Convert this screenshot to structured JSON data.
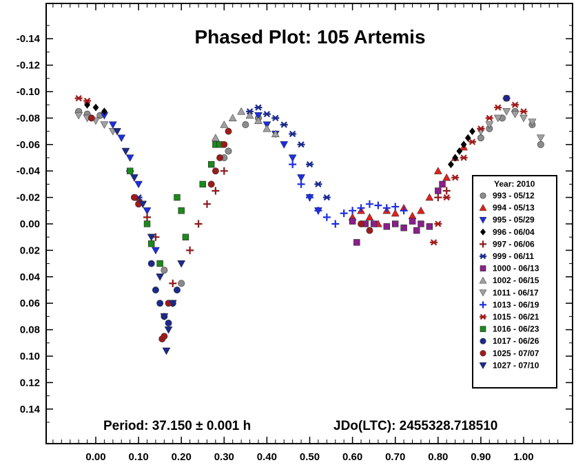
{
  "chart_data": {
    "type": "scatter",
    "title": "Phased Plot: 105 Artemis",
    "xlabel": "",
    "ylabel": "",
    "xlim": [
      -0.12,
      1.1
    ],
    "ylim": [
      0.16,
      -0.16
    ],
    "y_inverted": true,
    "x_ticks": [
      "0.00",
      "0.10",
      "0.20",
      "0.30",
      "0.40",
      "0.50",
      "0.60",
      "0.70",
      "0.80",
      "0.90",
      "1.00"
    ],
    "x_tick_values": [
      0,
      0.1,
      0.2,
      0.3,
      0.4,
      0.5,
      0.6,
      0.7,
      0.8,
      0.9,
      1.0
    ],
    "y_ticks": [
      "-0.14",
      "-0.12",
      "-0.10",
      "-0.08",
      "-0.06",
      "-0.04",
      "-0.02",
      "0.00",
      "0.02",
      "0.04",
      "0.06",
      "0.08",
      "0.10",
      "0.12",
      "0.14"
    ],
    "y_tick_values": [
      -0.14,
      -0.12,
      -0.1,
      -0.08,
      -0.06,
      -0.04,
      -0.02,
      0,
      0.02,
      0.04,
      0.06,
      0.08,
      0.1,
      0.12,
      0.14
    ],
    "grid": false,
    "legend_position": "right",
    "legend_title": "Year: 2010",
    "footer_period": "Period: 37.150 ± 0.001 h",
    "footer_epoch": "JDo(LTC): 2455328.718510",
    "series": [
      {
        "name": "993 - 05/12",
        "marker": "circle",
        "color": "#8c8c8c",
        "x": [
          -0.04,
          -0.02,
          0.01,
          0.16,
          0.2,
          0.3,
          0.31,
          0.35,
          0.38,
          0.9,
          0.92,
          0.95,
          0.98,
          1.02,
          1.04
        ],
        "y": [
          -0.085,
          -0.083,
          -0.082,
          0.035,
          0.045,
          -0.05,
          -0.055,
          -0.075,
          -0.08,
          -0.065,
          -0.072,
          -0.08,
          -0.085,
          -0.075,
          -0.06
        ]
      },
      {
        "name": "994 - 05/13",
        "marker": "triangle-up",
        "color": "#e0201c",
        "x": [
          0.6,
          0.62,
          0.64,
          0.66,
          0.68,
          0.7,
          0.72,
          0.74,
          0.76,
          0.78,
          0.8,
          0.82,
          0.84,
          0.86
        ],
        "y": [
          -0.005,
          -0.01,
          -0.005,
          0.0,
          -0.01,
          -0.008,
          -0.012,
          -0.006,
          -0.01,
          -0.02,
          -0.04,
          -0.035,
          -0.05,
          -0.058
        ]
      },
      {
        "name": "995 - 05/29",
        "marker": "triangle-down",
        "color": "#1c2ee0",
        "x": [
          0.02,
          0.04,
          0.06,
          0.08,
          0.1,
          0.12,
          0.14,
          0.38,
          0.4,
          0.42,
          0.44,
          0.46,
          0.48,
          0.5,
          0.52
        ],
        "y": [
          -0.082,
          -0.075,
          -0.065,
          -0.05,
          -0.03,
          -0.01,
          0.02,
          -0.082,
          -0.075,
          -0.068,
          -0.06,
          -0.05,
          -0.035,
          -0.02,
          -0.01
        ]
      },
      {
        "name": "996 - 06/04",
        "marker": "diamond",
        "color": "#000000",
        "x": [
          -0.02,
          0.0,
          0.02,
          0.83,
          0.84,
          0.85,
          0.86,
          0.87,
          0.88
        ],
        "y": [
          -0.09,
          -0.088,
          -0.085,
          -0.045,
          -0.05,
          -0.055,
          -0.06,
          -0.065,
          -0.07
        ]
      },
      {
        "name": "997 - 06/06",
        "marker": "plus",
        "color": "#8b1a1a",
        "x": [
          0.1,
          0.12,
          0.14,
          0.18,
          0.22,
          0.24,
          0.26,
          0.28,
          0.3,
          0.8,
          0.82
        ],
        "y": [
          -0.018,
          -0.005,
          0.01,
          0.045,
          0.02,
          0.0,
          -0.015,
          -0.025,
          -0.04,
          -0.02,
          -0.025
        ]
      },
      {
        "name": "999 - 06/11",
        "marker": "asterisk",
        "color": "#1a2a8c",
        "x": [
          0.08,
          0.1,
          0.36,
          0.38,
          0.4,
          0.42,
          0.44,
          0.46,
          0.48,
          0.5,
          0.52,
          0.54
        ],
        "y": [
          -0.04,
          -0.02,
          -0.085,
          -0.088,
          -0.083,
          -0.08,
          -0.075,
          -0.068,
          -0.06,
          -0.045,
          -0.03,
          -0.02
        ]
      },
      {
        "name": "1000 - 06/13",
        "marker": "square",
        "color": "#8b1f8b",
        "x": [
          0.6,
          0.61,
          0.63,
          0.65,
          0.68,
          0.7,
          0.72,
          0.74,
          0.75,
          0.76,
          0.78,
          0.8,
          0.81
        ],
        "y": [
          -0.002,
          0.014,
          0.0,
          0.0,
          0.002,
          0.0,
          0.003,
          -0.002,
          0.005,
          0.0,
          0.002,
          -0.025,
          -0.03
        ]
      },
      {
        "name": "1002 - 06/15",
        "marker": "triangle-up",
        "color": "#a0a0a0",
        "x": [
          0.28,
          0.3,
          0.32,
          0.34,
          0.36,
          0.38,
          0.4,
          0.42
        ],
        "y": [
          -0.065,
          -0.075,
          -0.08,
          -0.085,
          -0.082,
          -0.078,
          -0.072,
          -0.068
        ]
      },
      {
        "name": "1011 - 06/17",
        "marker": "triangle-down",
        "color": "#a0a0a0",
        "x": [
          -0.04,
          -0.02,
          0.0,
          0.02,
          0.04,
          0.9,
          0.92,
          0.94,
          0.96,
          0.98,
          1.0,
          1.02,
          1.04
        ],
        "y": [
          -0.082,
          -0.08,
          -0.078,
          -0.075,
          -0.07,
          -0.07,
          -0.075,
          -0.08,
          -0.085,
          -0.083,
          -0.08,
          -0.077,
          -0.065
        ]
      },
      {
        "name": "1013 - 06/19",
        "marker": "plus",
        "color": "#1c2ee0",
        "x": [
          0.46,
          0.48,
          0.5,
          0.52,
          0.54,
          0.56,
          0.58,
          0.6,
          0.62,
          0.64,
          0.66,
          0.68,
          0.7,
          0.72
        ],
        "y": [
          -0.045,
          -0.03,
          -0.02,
          -0.01,
          -0.005,
          0.0,
          -0.008,
          -0.01,
          -0.012,
          -0.015,
          -0.014,
          -0.012,
          -0.013,
          -0.01
        ]
      },
      {
        "name": "1015 - 06/21",
        "marker": "asterisk",
        "color": "#a01a1a",
        "x": [
          -0.04,
          -0.02,
          0.79,
          0.8,
          0.82,
          0.84,
          0.86,
          0.88,
          0.9,
          0.92,
          0.94,
          0.96,
          0.98,
          1.0
        ],
        "y": [
          -0.095,
          -0.093,
          0.014,
          0.0,
          -0.02,
          -0.035,
          -0.05,
          -0.062,
          -0.072,
          -0.08,
          -0.088,
          -0.095,
          -0.09,
          -0.085
        ]
      },
      {
        "name": "1016 - 06/23",
        "marker": "square",
        "color": "#1a8a1a",
        "x": [
          0.08,
          0.12,
          0.13,
          0.15,
          0.19,
          0.2,
          0.21,
          0.25,
          0.27,
          0.28,
          0.29
        ],
        "y": [
          -0.04,
          0.0,
          0.015,
          0.03,
          -0.02,
          -0.01,
          0.01,
          -0.03,
          -0.045,
          -0.06,
          -0.06
        ]
      },
      {
        "name": "1017 - 06/26",
        "marker": "circle",
        "color": "#1a2a8c",
        "x": [
          0.13,
          0.14,
          0.15,
          0.16,
          0.17,
          0.18,
          0.19,
          0.96
        ],
        "y": [
          0.03,
          0.05,
          0.06,
          0.07,
          0.075,
          0.06,
          0.05,
          -0.095
        ]
      },
      {
        "name": "1025 - 07/07",
        "marker": "circle",
        "color": "#a01a1a",
        "x": [
          -0.01,
          0.09,
          0.1,
          0.155,
          0.16,
          0.17,
          0.27,
          0.28,
          0.29,
          0.3,
          0.31,
          0.62,
          0.64
        ],
        "y": [
          -0.08,
          -0.02,
          -0.015,
          0.087,
          0.085,
          0.06,
          -0.03,
          -0.04,
          -0.05,
          -0.06,
          -0.07,
          0.0,
          0.005
        ]
      },
      {
        "name": "1027 - 07/10",
        "marker": "triangle-down",
        "color": "#1a2a8c",
        "x": [
          0.05,
          0.07,
          0.09,
          0.11,
          0.13,
          0.15,
          0.16,
          0.165,
          0.17,
          0.18,
          0.2
        ],
        "y": [
          -0.07,
          -0.055,
          -0.035,
          -0.015,
          0.01,
          0.04,
          0.07,
          0.096,
          0.08,
          0.06,
          0.03
        ]
      }
    ]
  }
}
